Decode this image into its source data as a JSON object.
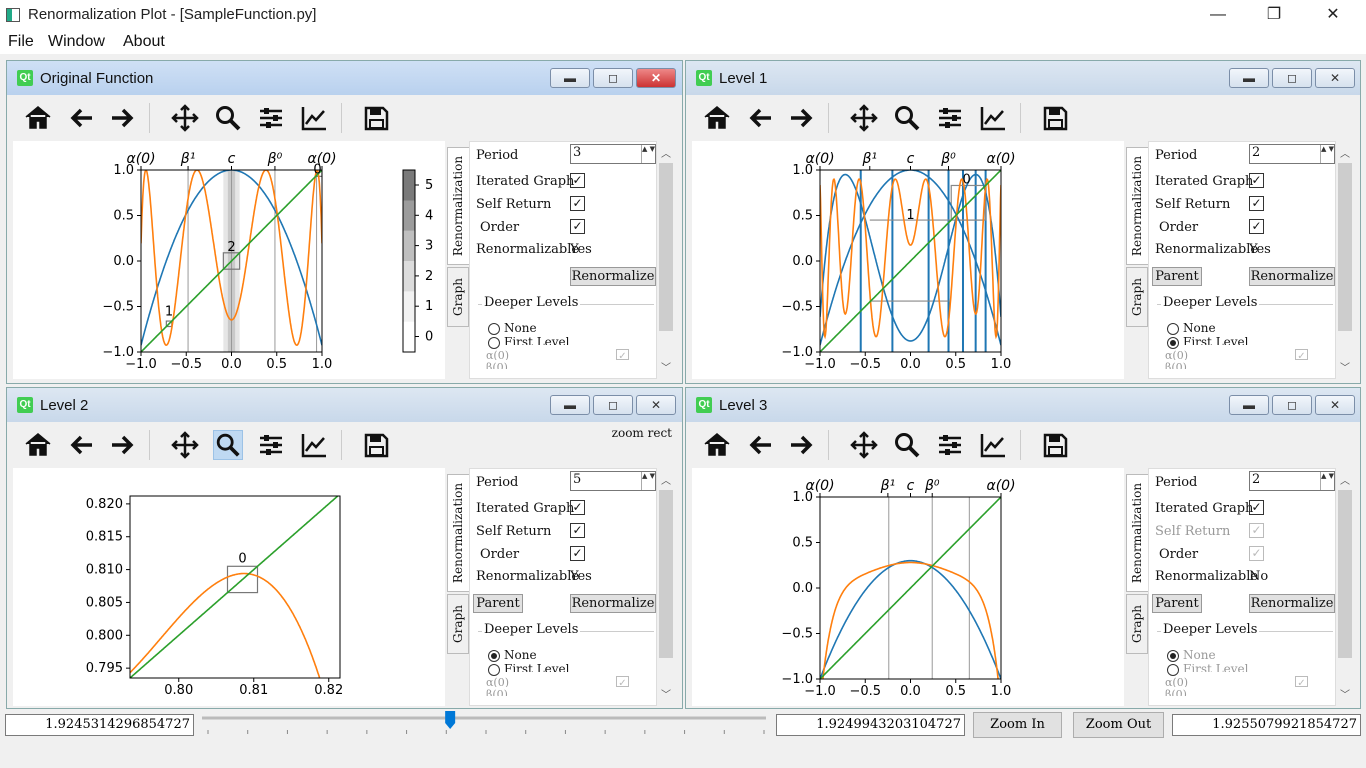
{
  "window": {
    "title": "Renormalization Plot - [SampleFunction.py]",
    "min": "—",
    "max": "❐",
    "close": "✕"
  },
  "menu": [
    "File",
    "Window",
    "About"
  ],
  "toolbar_icons": [
    "home-icon",
    "back-arrow-icon",
    "forward-arrow-icon",
    "pan-icon",
    "zoom-icon",
    "configure-subplots-icon",
    "edit-axis-icon",
    "save-icon"
  ],
  "panels": [
    {
      "title": "Original Function",
      "period": "3",
      "iterated": true,
      "self_return": true,
      "order": true,
      "renormalizable": "Yes",
      "has_parent": false,
      "radio_on": -1
    },
    {
      "title": "Level 1",
      "period": "2",
      "iterated": true,
      "self_return": true,
      "order": true,
      "renormalizable": "Yes",
      "has_parent": true,
      "radio_on": 1
    },
    {
      "title": "Level 2",
      "period": "5",
      "iterated": true,
      "self_return": true,
      "order": true,
      "renormalizable": "Yes",
      "has_parent": true,
      "radio_on": 0,
      "tool_status": "zoom rect"
    },
    {
      "title": "Level 3",
      "period": "2",
      "iterated": true,
      "self_return": true,
      "order": true,
      "renormalizable": "No",
      "has_parent": true,
      "radio_on": 0,
      "disabled": true
    }
  ],
  "side_labels": {
    "tab_renorm": "Renormalization",
    "tab_graph": "Graph",
    "period": "Period",
    "iterated": "Iterated Graph",
    "self_return": "Self Return",
    "order": "Order",
    "renormalizable": "Renormalizable",
    "parent": "Parent",
    "renormalize": "Renormalize",
    "deeper": "Deeper Levels",
    "none": "None",
    "first": "First Level",
    "alpha": "α(0)",
    "beta": "β(0)"
  },
  "bottom": {
    "left_value": "1.9245314296854727",
    "center_value": "1.9249943203104727",
    "right_value": "1.9255079921854727",
    "zoom_in": "Zoom In",
    "zoom_out": "Zoom Out",
    "slider_fraction": 0.44
  },
  "plots": {
    "top_labels_main": [
      "α(0)",
      "β¹",
      "c",
      "β⁰",
      "α(0)"
    ],
    "xticks": [
      "−1.0",
      "−0.5",
      "0.0",
      "0.5",
      "1.0"
    ],
    "yticks": [
      "1.0",
      "0.5",
      "0.0",
      "−0.5",
      "−1.0"
    ],
    "colorbar_ticks": [
      "5",
      "4",
      "3",
      "2",
      "1",
      "0"
    ],
    "orig_boxes": [
      "0",
      "1",
      "2"
    ],
    "level1_boxes": [
      "0",
      "1"
    ],
    "level2_xticks": [
      "0.80",
      "0.81",
      "0.82"
    ],
    "level2_yticks": [
      "0.820",
      "0.815",
      "0.810",
      "0.805",
      "0.800",
      "0.795"
    ],
    "level2_box": "0",
    "level3_top_labels": [
      "α(0)",
      "β¹",
      "c",
      "β⁰",
      "α(0)"
    ]
  },
  "colors": {
    "blue": "#1f77b4",
    "orange": "#ff7f0e",
    "green": "#2ca02c"
  }
}
